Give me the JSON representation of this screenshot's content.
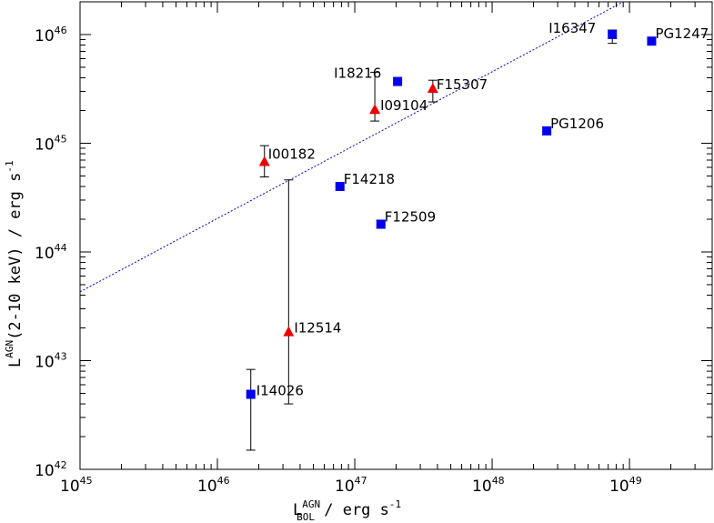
{
  "chart_data": {
    "type": "scatter",
    "xlabel": "L",
    "xlabel_sup": "AGN",
    "xlabel_sub": "BOL",
    "xlabel_rest": " / erg s",
    "xlabel_unit_exp": "-1",
    "ylabel": "L",
    "ylabel_sup": "AGN",
    "ylabel_rest": "(2-10 keV) / erg s",
    "ylabel_unit_exp": "-1",
    "x_scale": "log",
    "y_scale": "log",
    "xlim": [
      1e+45,
      4e+49
    ],
    "ylim": [
      1e+42,
      2e+46
    ],
    "grid": false,
    "x_ticks": [
      {
        "base": "10",
        "exp": "45",
        "value": 1e+45
      },
      {
        "base": "10",
        "exp": "46",
        "value": 1e+46
      },
      {
        "base": "10",
        "exp": "47",
        "value": 1e+47
      },
      {
        "base": "10",
        "exp": "48",
        "value": 1e+48
      },
      {
        "base": "10",
        "exp": "49",
        "value": 1e+49
      }
    ],
    "y_ticks": [
      {
        "base": "10",
        "exp": "42",
        "value": 1e+42
      },
      {
        "base": "10",
        "exp": "43",
        "value": 1e+43
      },
      {
        "base": "10",
        "exp": "44",
        "value": 1e+44
      },
      {
        "base": "10",
        "exp": "45",
        "value": 1e+45
      },
      {
        "base": "10",
        "exp": "46",
        "value": 1e+46
      }
    ],
    "colors": {
      "square": "#0000ee",
      "triangle": "#ee0000",
      "fit_line": "#0000cc"
    },
    "fit_line": {
      "x": [
        1e+45,
        9e+48
      ],
      "y": [
        4.3e+43,
        2e+46
      ]
    },
    "points": [
      {
        "label": "I16347",
        "x": 7.5e+48,
        "y": 1e+46,
        "marker": "square",
        "err_low": 8.3e+45,
        "err_high": 1.1e+46
      },
      {
        "label": "PG1247",
        "x": 1.45e+49,
        "y": 8.7e+45,
        "marker": "square"
      },
      {
        "label": "I18216",
        "x": 2.05e+47,
        "y": 3.7e+45,
        "marker": "square"
      },
      {
        "label": "F15307",
        "x": 3.7e+47,
        "y": 3.2e+45,
        "marker": "triangle",
        "err_low": 2.4e+45,
        "err_high": 3.8e+45
      },
      {
        "label": "I09104",
        "x": 1.4e+47,
        "y": 2.05e+45,
        "marker": "triangle",
        "err_low": 1.6e+45,
        "err_high": 4.5e+45
      },
      {
        "label": "PG1206",
        "x": 2.5e+48,
        "y": 1.3e+45,
        "marker": "square"
      },
      {
        "label": "I00182",
        "x": 2.2e+46,
        "y": 6.8e+44,
        "marker": "triangle",
        "err_low": 4.9e+44,
        "err_high": 9.5e+44
      },
      {
        "label": "F14218",
        "x": 7.8e+46,
        "y": 4e+44,
        "marker": "square"
      },
      {
        "label": "F12509",
        "x": 1.55e+47,
        "y": 1.8e+44,
        "marker": "square",
        "err_low": 1.65e+44,
        "err_high": 1.95e+44
      },
      {
        "label": "I12514",
        "x": 3.3e+46,
        "y": 1.85e+43,
        "marker": "triangle",
        "err_low": 4e+42,
        "err_high": 4.6e+44
      },
      {
        "label": "I14026",
        "x": 1.75e+46,
        "y": 4.9e+42,
        "marker": "square",
        "err_low": 1.5e+42,
        "err_high": 8.3e+42
      }
    ]
  }
}
